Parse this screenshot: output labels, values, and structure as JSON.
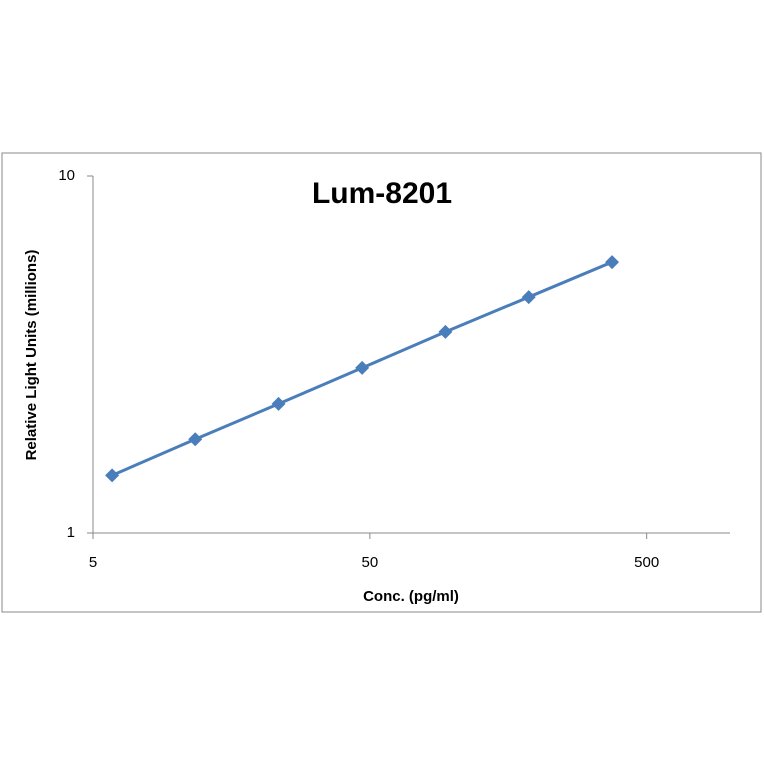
{
  "chart_data": {
    "type": "line",
    "title": "Lum-8201",
    "x_label": "Conc. (pg/ml)",
    "y_label": "Relative Light Units (millions)",
    "x": [
      5.86,
      11.7,
      23.4,
      46.9,
      93.75,
      187.5,
      375
    ],
    "series": [
      {
        "color": "#4a7ebb",
        "values": [
          1.45,
          1.83,
          2.3,
          2.9,
          3.66,
          4.58,
          5.74
        ]
      }
    ],
    "xlim": [
      5,
      1000
    ],
    "ylim": [
      1,
      10
    ],
    "xticks": [
      5,
      50,
      500
    ],
    "yticks": [
      1,
      10
    ],
    "xlog": true,
    "ylog": true,
    "grid": false,
    "marker": "diamond"
  }
}
